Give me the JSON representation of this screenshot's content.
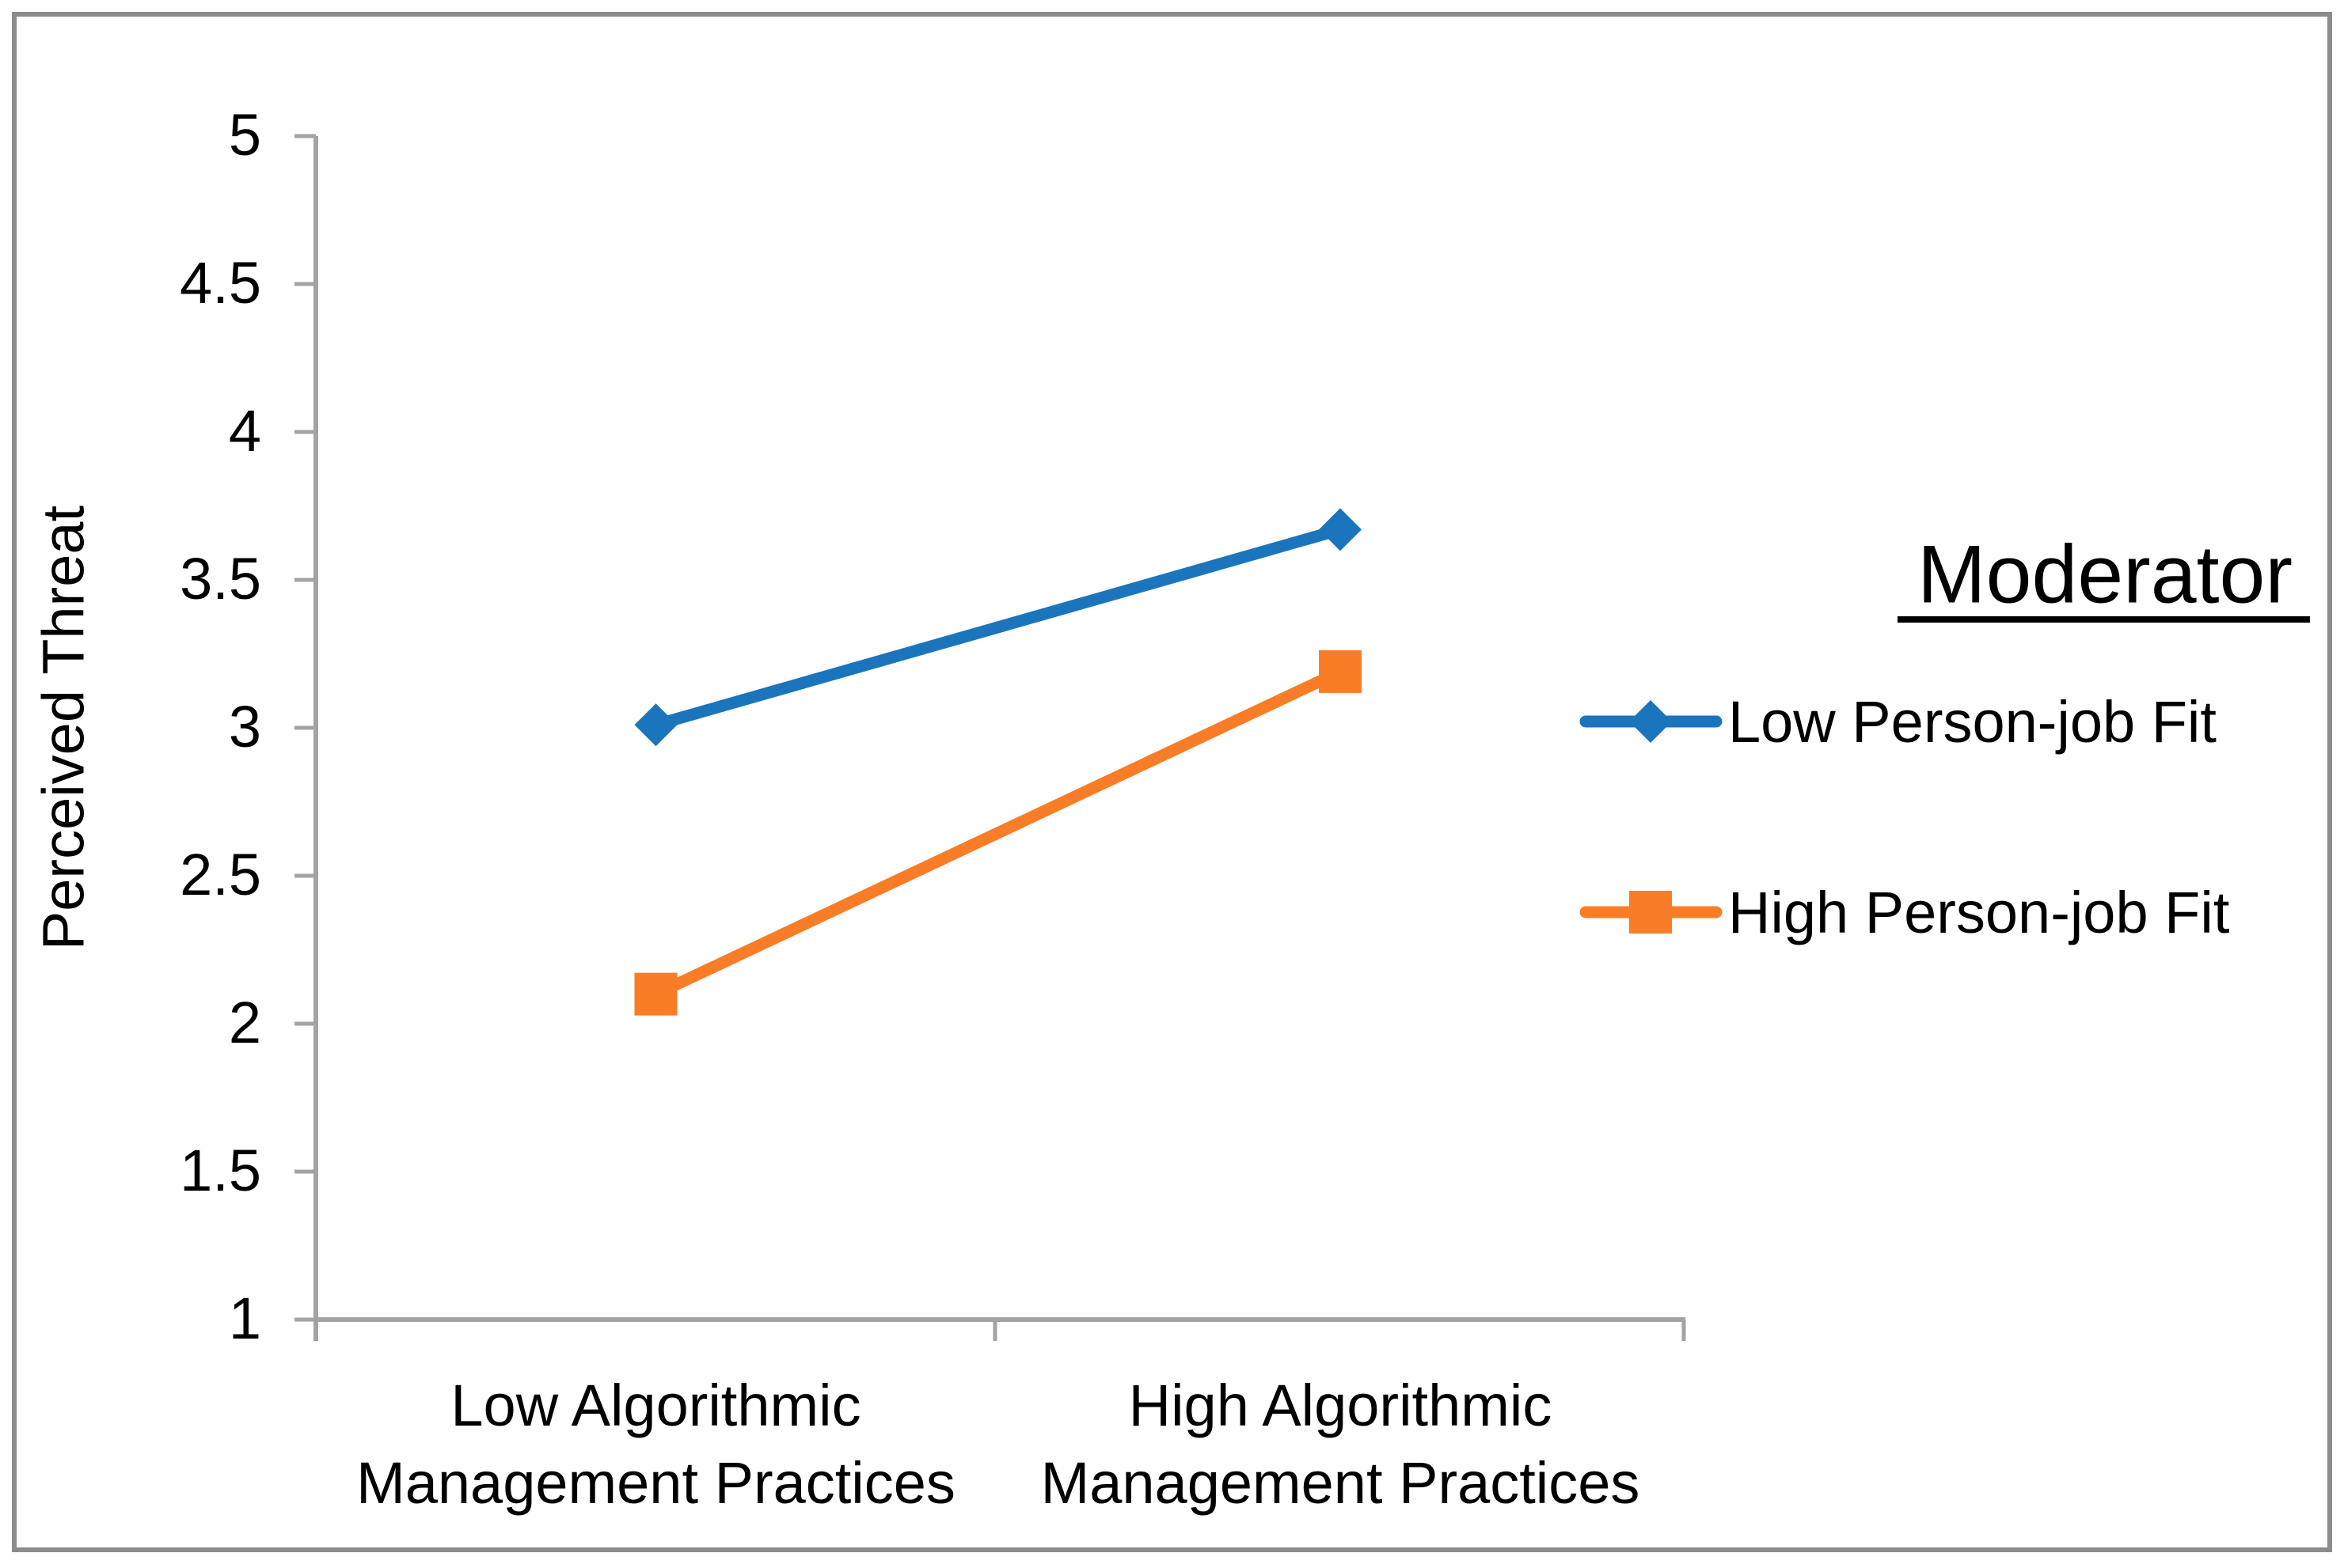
{
  "chart_data": {
    "type": "line",
    "title": "",
    "xlabel": "",
    "ylabel": "Perceived Threat",
    "categories": [
      "Low Algorithmic\nManagement Practices",
      "High Algorithmic\nManagement Practices"
    ],
    "y_ticks": [
      "1",
      "1.5",
      "2",
      "2.5",
      "3",
      "3.5",
      "4",
      "4.5",
      "5"
    ],
    "ylim": [
      1,
      5
    ],
    "grid": false,
    "legend": {
      "title": "Moderator",
      "position": "right"
    },
    "series": [
      {
        "name": "Low Person-job Fit",
        "marker": "diamond",
        "color": "#1B75BC",
        "values": [
          3.01,
          3.67
        ]
      },
      {
        "name": "High Person-job Fit",
        "marker": "square",
        "color": "#F97D27",
        "values": [
          2.1,
          3.19
        ]
      }
    ],
    "colors": {
      "axis": "#A3A3A3",
      "frame": "#8C8C8C",
      "text": "#000000"
    }
  }
}
